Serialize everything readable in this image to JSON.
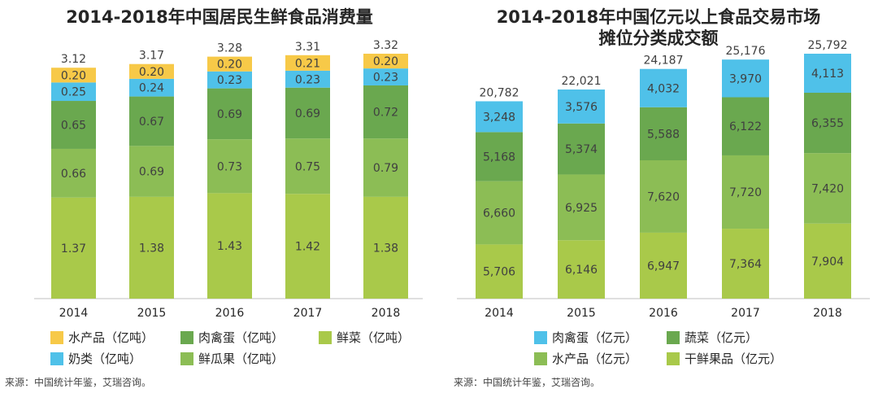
{
  "chart_data": [
    {
      "type": "bar",
      "stacked": true,
      "title": "2014-2018年中国居民生鲜食品消费量",
      "categories": [
        "2014",
        "2015",
        "2016",
        "2017",
        "2018"
      ],
      "series": [
        {
          "name": "鲜菜（亿吨）",
          "color": "#a9c94a",
          "values": [
            1.37,
            1.38,
            1.43,
            1.42,
            1.38
          ]
        },
        {
          "name": "鲜瓜果（亿吨）",
          "color": "#8cbd55",
          "values": [
            0.66,
            0.69,
            0.73,
            0.75,
            0.79
          ]
        },
        {
          "name": "肉禽蛋（亿吨）",
          "color": "#6aa84f",
          "values": [
            0.65,
            0.67,
            0.69,
            0.69,
            0.72
          ]
        },
        {
          "name": "奶类（亿吨）",
          "color": "#4fc1e9",
          "values": [
            0.25,
            0.24,
            0.23,
            0.23,
            0.23
          ]
        },
        {
          "name": "水产品（亿吨）",
          "color": "#f7c948",
          "values": [
            0.2,
            0.2,
            0.2,
            0.21,
            0.2
          ]
        }
      ],
      "totals": [
        "3.12",
        "3.17",
        "3.28",
        "3.31",
        "3.32"
      ],
      "value_labels": [
        [
          "1.37",
          "1.38",
          "1.43",
          "1.42",
          "1.38"
        ],
        [
          "0.66",
          "0.69",
          "0.73",
          "0.75",
          "0.79"
        ],
        [
          "0.65",
          "0.67",
          "0.69",
          "0.69",
          "0.72"
        ],
        [
          "0.25",
          "0.24",
          "0.23",
          "0.23",
          "0.23"
        ],
        [
          "0.20",
          "0.20",
          "0.20",
          "0.21",
          "0.20"
        ]
      ],
      "ylim": [
        0,
        3.32
      ],
      "legend": {
        "position": "bottom",
        "rows": [
          [
            "水产品（亿吨）",
            "肉禽蛋（亿吨）",
            "鲜菜（亿吨）"
          ],
          [
            "奶类（亿吨）",
            "鲜瓜果（亿吨）"
          ]
        ]
      },
      "source": "来源：中国统计年鉴，艾瑞咨询。"
    },
    {
      "type": "bar",
      "stacked": true,
      "title": "2014-2018年中国亿元以上食品交易市场",
      "title_line2": "摊位分类成交额",
      "categories": [
        "2014",
        "2015",
        "2016",
        "2017",
        "2018"
      ],
      "series": [
        {
          "name": "干鲜果品（亿元）",
          "color": "#a9c94a",
          "values": [
            5706,
            6146,
            6947,
            7364,
            7904
          ]
        },
        {
          "name": "水产品（亿元）",
          "color": "#8cbd55",
          "values": [
            6660,
            6925,
            7620,
            7720,
            7420
          ]
        },
        {
          "name": "蔬菜（亿元）",
          "color": "#6aa84f",
          "values": [
            5168,
            5374,
            5588,
            6122,
            6355
          ]
        },
        {
          "name": "肉禽蛋（亿元）",
          "color": "#4fc1e9",
          "values": [
            3248,
            3576,
            4032,
            3970,
            4113
          ]
        }
      ],
      "totals": [
        "20,782",
        "22,021",
        "24,187",
        "25,176",
        "25,792"
      ],
      "value_labels": [
        [
          "5,706",
          "6,146",
          "6,947",
          "7,364",
          "7,904"
        ],
        [
          "6,660",
          "6,925",
          "7,620",
          "7,720",
          "7,420"
        ],
        [
          "5,168",
          "5,374",
          "5,588",
          "6,122",
          "6,355"
        ],
        [
          "3,248",
          "3,576",
          "4,032",
          "3,970",
          "4,113"
        ]
      ],
      "ylim": [
        0,
        25792
      ],
      "legend": {
        "position": "bottom",
        "rows": [
          [
            "肉禽蛋（亿元）",
            "蔬菜（亿元）"
          ],
          [
            "水产品（亿元）",
            "干鲜果品（亿元）"
          ]
        ]
      },
      "source": "来源：中国统计年鉴，艾瑞咨询。"
    }
  ]
}
